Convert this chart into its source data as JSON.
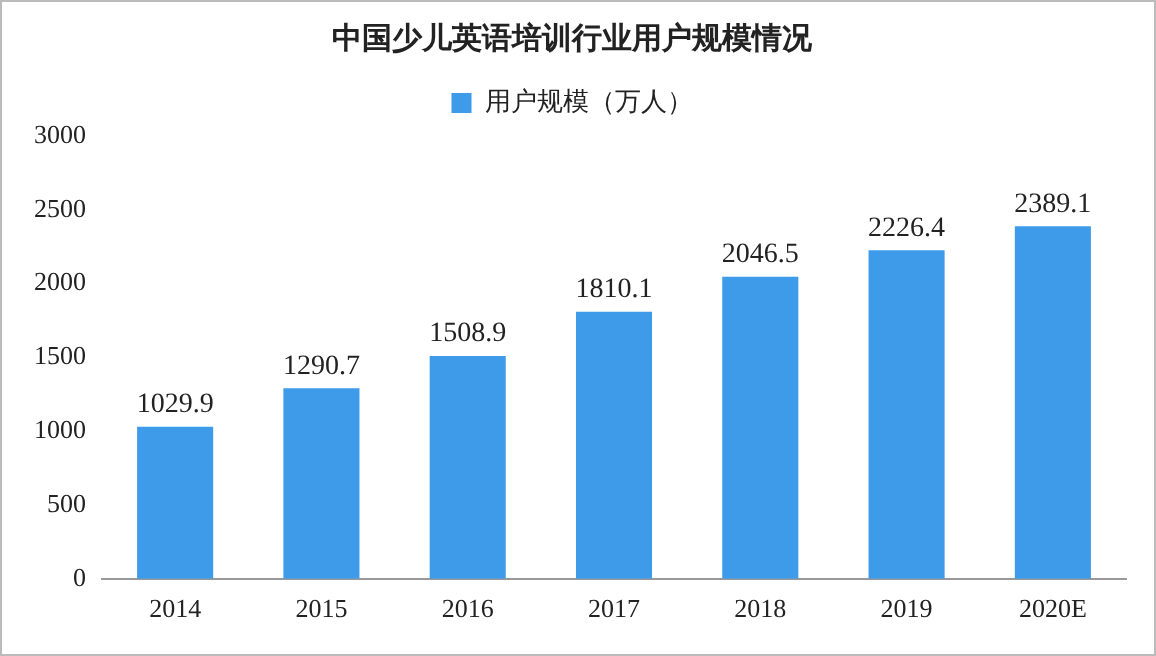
{
  "chart_data": {
    "type": "bar",
    "title": "中国少儿英语培训行业用户规模情况",
    "categories": [
      "2014",
      "2015",
      "2016",
      "2017",
      "2018",
      "2019",
      "2020E"
    ],
    "series": [
      {
        "name": "用户规模（万人）",
        "color": "#3d9be9",
        "values": [
          1029.9,
          1290.7,
          1508.9,
          1810.1,
          2046.5,
          2226.4,
          2389.1
        ]
      }
    ],
    "ylim": [
      0,
      3000
    ],
    "yticks": [
      0,
      500,
      1000,
      1500,
      2000,
      2500,
      3000
    ],
    "grid": false,
    "legend": "top",
    "data_labels": true
  }
}
